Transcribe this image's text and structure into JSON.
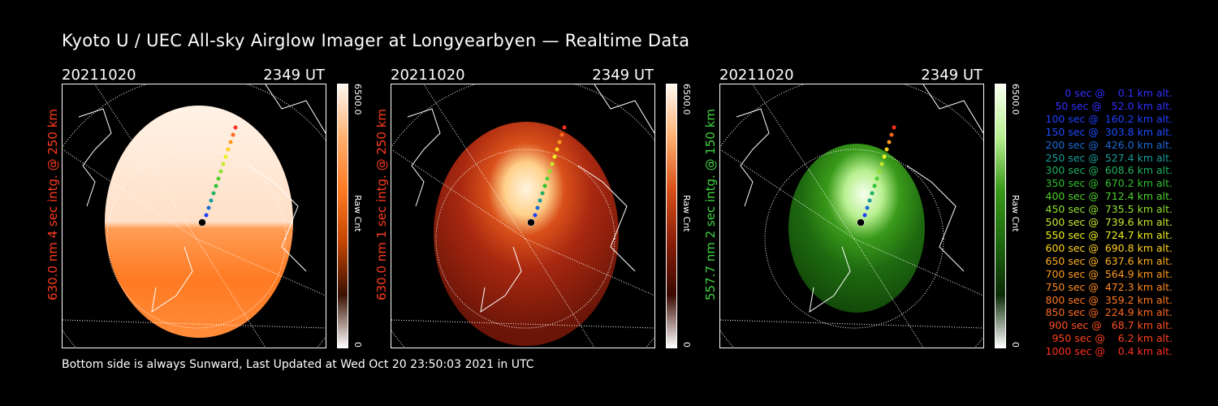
{
  "title": "Kyoto U / UEC All-sky Airglow Imager at Longyearbyen — Realtime Data",
  "panels": [
    {
      "date": "20211020",
      "time": "2349 UT",
      "label": "630.0 nm 4 sec intg. @ 250 km",
      "label_color": "#ff3b1f",
      "colormax": "6500.0",
      "colormin": "0",
      "colorbar_label": "Raw Cnt",
      "palette": "orange"
    },
    {
      "date": "20211020",
      "time": "2349 UT",
      "label": "630.0 nm 1 sec intg. @ 250 km",
      "label_color": "#ff3b1f",
      "colormax": "6500.0",
      "colormin": "0",
      "colorbar_label": "Raw Cnt",
      "palette": "red"
    },
    {
      "date": "20211020",
      "time": "2349 UT",
      "label": "557.7 nm 2 sec intg. @ 150 km",
      "label_color": "#3fd23f",
      "colormax": "6500.0",
      "colormin": "0",
      "colorbar_label": "Raw Cnt",
      "palette": "green"
    }
  ],
  "legend": [
    {
      "text": "0 sec @    0.1 km alt.",
      "color": "#3030ff"
    },
    {
      "text": "50 sec @   52.0 km alt.",
      "color": "#3030ff"
    },
    {
      "text": "100 sec @  160.2 km alt.",
      "color": "#1f3fff"
    },
    {
      "text": "150 sec @  303.8 km alt.",
      "color": "#1f4cff"
    },
    {
      "text": "200 sec @  426.0 km alt.",
      "color": "#1a6ad8"
    },
    {
      "text": "250 sec @  527.4 km alt.",
      "color": "#1a9a9a"
    },
    {
      "text": "300 sec @  608.6 km alt.",
      "color": "#20b060"
    },
    {
      "text": "350 sec @  670.2 km alt.",
      "color": "#30c030"
    },
    {
      "text": "400 sec @  712.4 km alt.",
      "color": "#50d030"
    },
    {
      "text": "450 sec @  735.5 km alt.",
      "color": "#90e030"
    },
    {
      "text": "500 sec @  739.6 km alt.",
      "color": "#c8e830"
    },
    {
      "text": "550 sec @  724.7 km alt.",
      "color": "#f0f020"
    },
    {
      "text": "600 sec @  690.8 km alt.",
      "color": "#ffd020"
    },
    {
      "text": "650 sec @  637.6 km alt.",
      "color": "#ffb020"
    },
    {
      "text": "700 sec @  564.9 km alt.",
      "color": "#ff9a20"
    },
    {
      "text": "750 sec @  472.3 km alt.",
      "color": "#ff8a20"
    },
    {
      "text": "800 sec @  359.2 km alt.",
      "color": "#ff7a20"
    },
    {
      "text": "850 sec @  224.9 km alt.",
      "color": "#ff6a20"
    },
    {
      "text": "900 sec @   68.7 km alt.",
      "color": "#ff5020"
    },
    {
      "text": "950 sec @    6.2 km alt.",
      "color": "#ff4020"
    },
    {
      "text": "1000 sec @    0.4 km alt.",
      "color": "#ff3020"
    }
  ],
  "footer": "Bottom side is always Sunward, Last Updated at Wed Oct 20 23:50:03 2021 in UTC"
}
